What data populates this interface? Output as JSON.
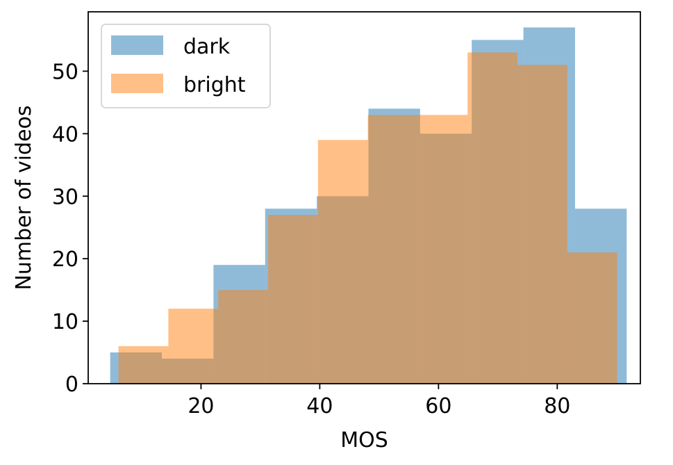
{
  "chart_data": {
    "type": "histogram",
    "xlabel": "MOS",
    "ylabel": "Number of videos",
    "xlim": [
      1.0,
      94.0
    ],
    "ylim": [
      0,
      59.5
    ],
    "xticks": [
      20,
      40,
      60,
      80
    ],
    "yticks": [
      0,
      10,
      20,
      30,
      40,
      50
    ],
    "grid": false,
    "legend": {
      "placement": "top-left",
      "entries": [
        "dark",
        "bright"
      ]
    },
    "series": [
      {
        "name": "dark",
        "color": "#1f77b4",
        "opacity": 0.5,
        "bin_edges": [
          4.7,
          13.4,
          22.1,
          30.8,
          39.5,
          48.2,
          56.9,
          65.6,
          74.3,
          83.0,
          91.7
        ],
        "values": [
          5,
          4,
          19,
          28,
          30,
          44,
          40,
          55,
          57,
          28
        ]
      },
      {
        "name": "bright",
        "color": "#ff7f0e",
        "opacity": 0.5,
        "bin_edges": [
          6.1,
          14.5,
          22.9,
          31.3,
          39.7,
          48.1,
          56.5,
          64.9,
          73.3,
          81.7,
          90.1
        ],
        "values": [
          6,
          12,
          15,
          27,
          39,
          43,
          43,
          53,
          51,
          21
        ]
      }
    ]
  }
}
